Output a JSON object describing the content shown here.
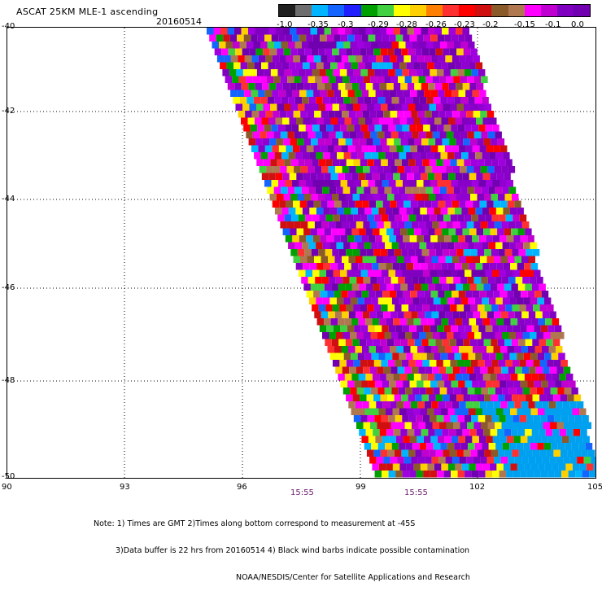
{
  "header": {
    "title": "ASCAT 25KM MLE-1 ascending",
    "date": "20160514"
  },
  "colorbar": {
    "colors": [
      "#202020",
      "#6e6e6e",
      "#00b4ff",
      "#1464ff",
      "#2020ff",
      "#00a000",
      "#40d040",
      "#ffff00",
      "#ffd000",
      "#ff8000",
      "#ff3030",
      "#ff0000",
      "#d01010",
      "#8b5a2b",
      "#b07850",
      "#ff00ff",
      "#c000d0",
      "#8000c0",
      "#7000b0"
    ],
    "labels": [
      "-1.0",
      "-0.35",
      "-0.3",
      "-0.29",
      "-0.28",
      "-0.26",
      "-0.23",
      "-0.2",
      "-0.15",
      "-0.1",
      "0.0"
    ]
  },
  "map": {
    "y_labels": [
      "-40",
      "-42",
      "-44",
      "-46",
      "-48",
      "-50"
    ],
    "x_labels": [
      "90",
      "93",
      "96",
      "99",
      "102",
      "105"
    ],
    "time_labels": [
      "15:55",
      "15:55"
    ],
    "lat_range": [
      -50,
      -40
    ],
    "lon_range": [
      90,
      105
    ]
  },
  "footer": {
    "note_line1": "Note: 1) Times are GMT 2)Times along bottom correspond to measurement at -45S",
    "note_line2": "3)Data buffer is 22 hrs from 20160514 4) Black wind barbs indicate possible contamination",
    "note_line3": "NOAA/NESDIS/Center for Satellite Applications and Research"
  }
}
